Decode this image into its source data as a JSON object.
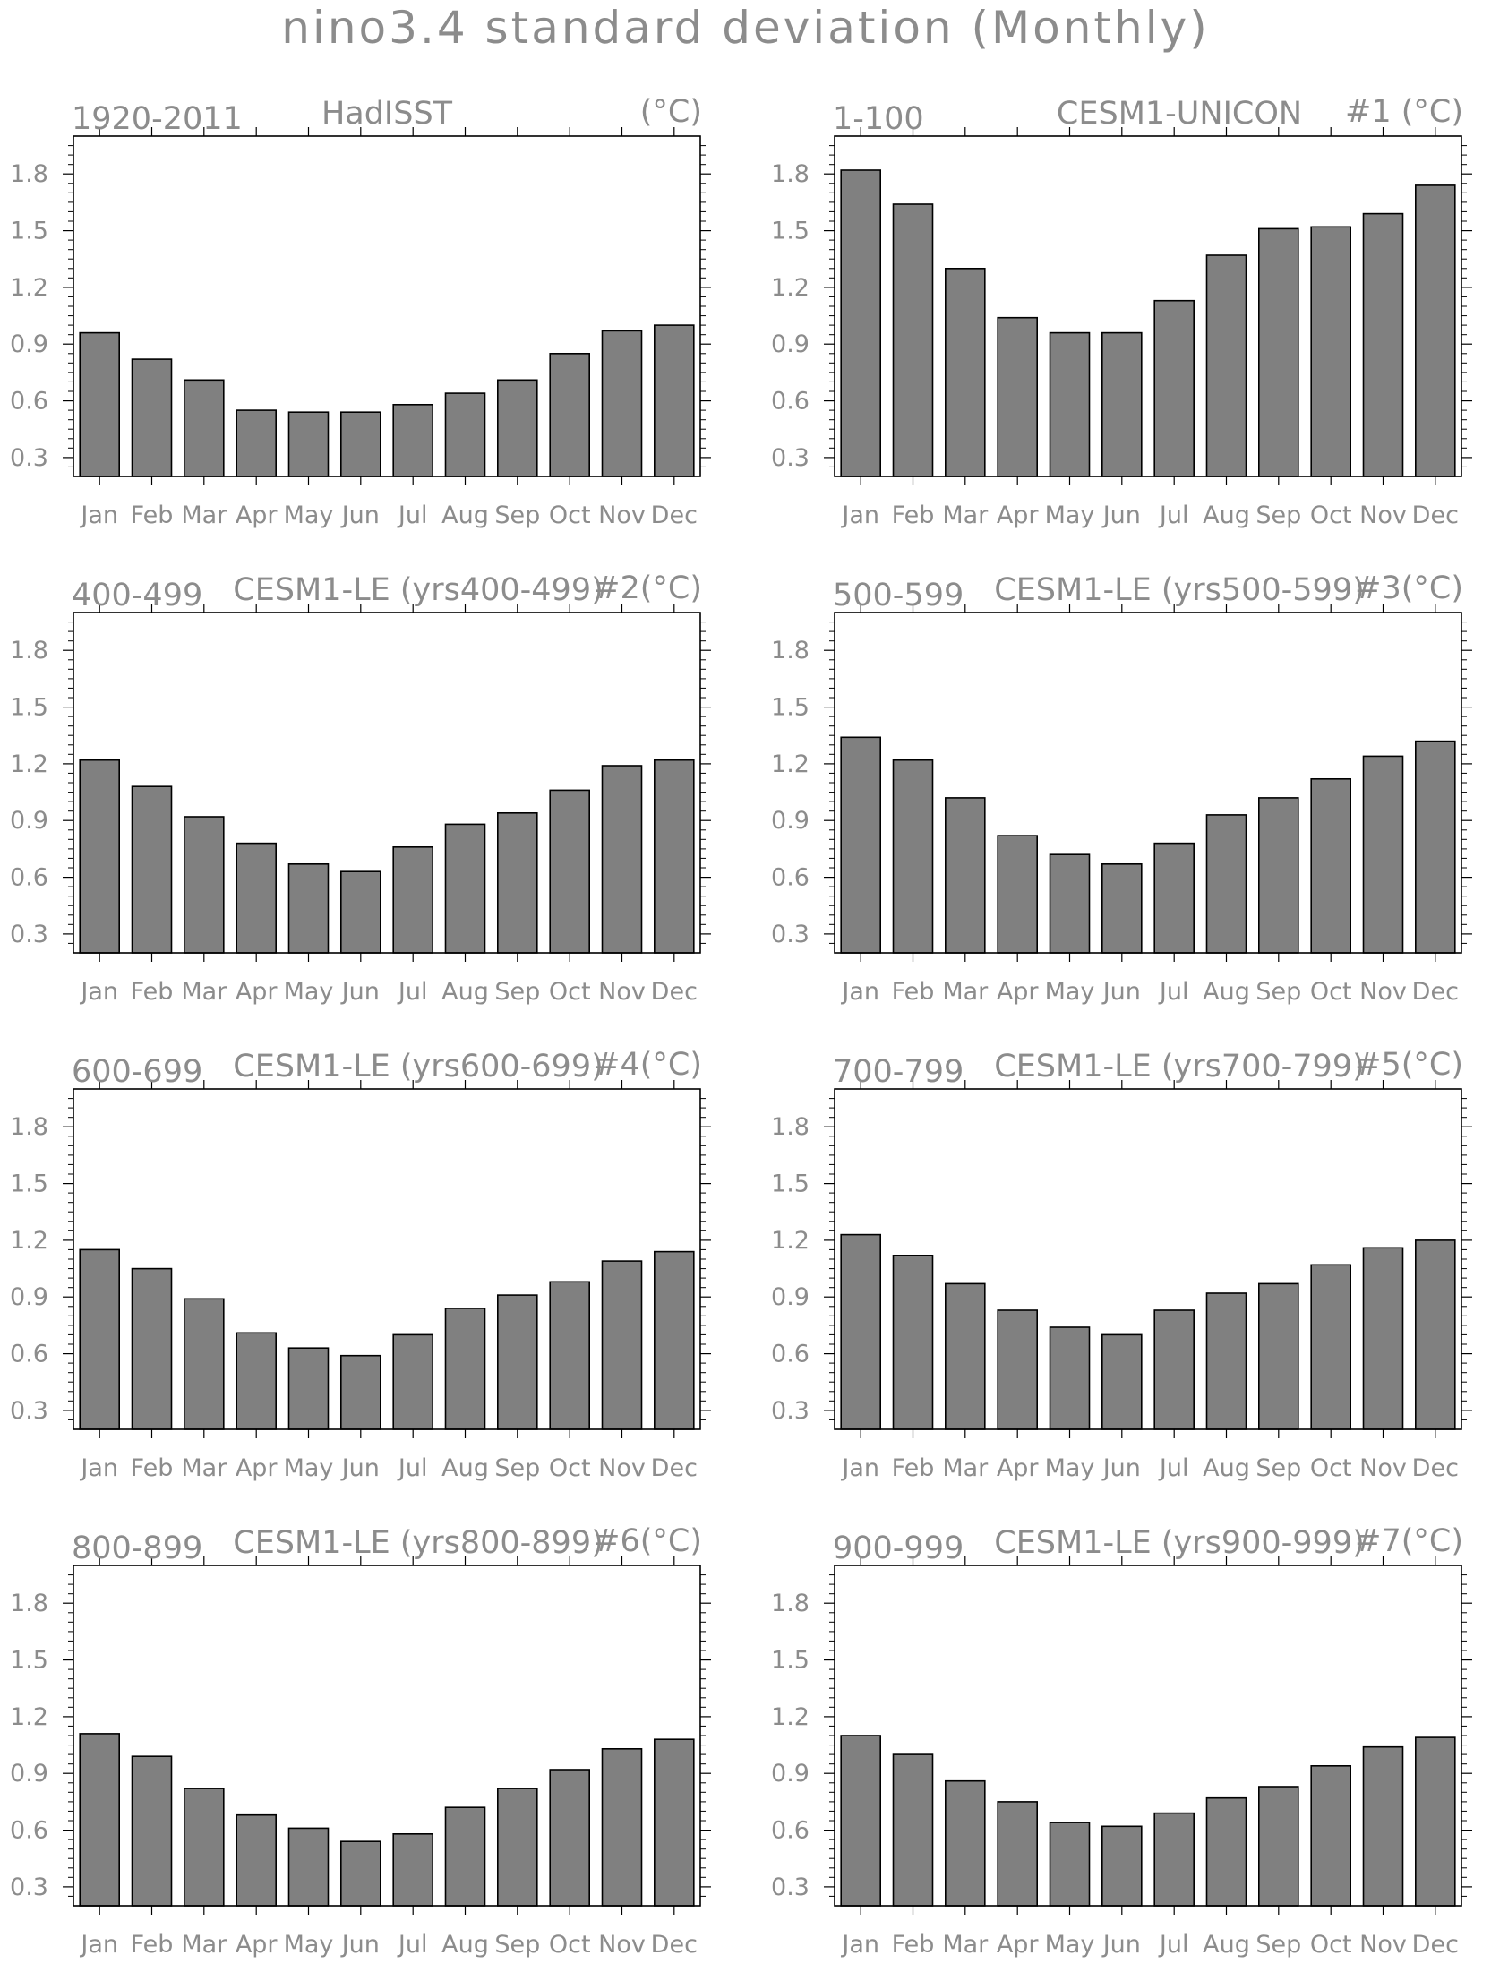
{
  "figure": {
    "title": "nino3.4  standard  deviation  (Monthly)"
  },
  "chart_data": [
    {
      "type": "bar",
      "left_label": "1920-2011",
      "center_label": "HadISST",
      "right_label": "(°C)",
      "categories": [
        "Jan",
        "Feb",
        "Mar",
        "Apr",
        "May",
        "Jun",
        "Jul",
        "Aug",
        "Sep",
        "Oct",
        "Nov",
        "Dec"
      ],
      "values": [
        0.96,
        0.82,
        0.71,
        0.55,
        0.54,
        0.54,
        0.58,
        0.64,
        0.71,
        0.85,
        0.97,
        1.0
      ],
      "yticks": [
        0.3,
        0.6,
        0.9,
        1.2,
        1.5,
        1.8
      ],
      "ylim": [
        0.2,
        2.0
      ],
      "bar_color": "#808080"
    },
    {
      "type": "bar",
      "left_label": "1-100",
      "center_label": "CESM1-UNICON",
      "right_label": "#1  (°C)",
      "categories": [
        "Jan",
        "Feb",
        "Mar",
        "Apr",
        "May",
        "Jun",
        "Jul",
        "Aug",
        "Sep",
        "Oct",
        "Nov",
        "Dec"
      ],
      "values": [
        1.82,
        1.64,
        1.3,
        1.04,
        0.96,
        0.96,
        1.13,
        1.37,
        1.51,
        1.52,
        1.59,
        1.74
      ],
      "yticks": [
        0.3,
        0.6,
        0.9,
        1.2,
        1.5,
        1.8
      ],
      "ylim": [
        0.2,
        2.0
      ],
      "bar_color": "#808080"
    },
    {
      "type": "bar",
      "left_label": "400-499",
      "center_label": "CESM1-LE (yrs400-499)",
      "right_label": "#2(°C)",
      "categories": [
        "Jan",
        "Feb",
        "Mar",
        "Apr",
        "May",
        "Jun",
        "Jul",
        "Aug",
        "Sep",
        "Oct",
        "Nov",
        "Dec"
      ],
      "values": [
        1.22,
        1.08,
        0.92,
        0.78,
        0.67,
        0.63,
        0.76,
        0.88,
        0.94,
        1.06,
        1.19,
        1.22
      ],
      "yticks": [
        0.3,
        0.6,
        0.9,
        1.2,
        1.5,
        1.8
      ],
      "ylim": [
        0.2,
        2.0
      ],
      "bar_color": "#808080"
    },
    {
      "type": "bar",
      "left_label": "500-599",
      "center_label": "CESM1-LE (yrs500-599)",
      "right_label": "#3(°C)",
      "categories": [
        "Jan",
        "Feb",
        "Mar",
        "Apr",
        "May",
        "Jun",
        "Jul",
        "Aug",
        "Sep",
        "Oct",
        "Nov",
        "Dec"
      ],
      "values": [
        1.34,
        1.22,
        1.02,
        0.82,
        0.72,
        0.67,
        0.78,
        0.93,
        1.02,
        1.12,
        1.24,
        1.32
      ],
      "yticks": [
        0.3,
        0.6,
        0.9,
        1.2,
        1.5,
        1.8
      ],
      "ylim": [
        0.2,
        2.0
      ],
      "bar_color": "#808080"
    },
    {
      "type": "bar",
      "left_label": "600-699",
      "center_label": "CESM1-LE (yrs600-699)",
      "right_label": "#4(°C)",
      "categories": [
        "Jan",
        "Feb",
        "Mar",
        "Apr",
        "May",
        "Jun",
        "Jul",
        "Aug",
        "Sep",
        "Oct",
        "Nov",
        "Dec"
      ],
      "values": [
        1.15,
        1.05,
        0.89,
        0.71,
        0.63,
        0.59,
        0.7,
        0.84,
        0.91,
        0.98,
        1.09,
        1.14
      ],
      "yticks": [
        0.3,
        0.6,
        0.9,
        1.2,
        1.5,
        1.8
      ],
      "ylim": [
        0.2,
        2.0
      ],
      "bar_color": "#808080"
    },
    {
      "type": "bar",
      "left_label": "700-799",
      "center_label": "CESM1-LE (yrs700-799)",
      "right_label": "#5(°C)",
      "categories": [
        "Jan",
        "Feb",
        "Mar",
        "Apr",
        "May",
        "Jun",
        "Jul",
        "Aug",
        "Sep",
        "Oct",
        "Nov",
        "Dec"
      ],
      "values": [
        1.23,
        1.12,
        0.97,
        0.83,
        0.74,
        0.7,
        0.83,
        0.92,
        0.97,
        1.07,
        1.16,
        1.2
      ],
      "yticks": [
        0.3,
        0.6,
        0.9,
        1.2,
        1.5,
        1.8
      ],
      "ylim": [
        0.2,
        2.0
      ],
      "bar_color": "#808080"
    },
    {
      "type": "bar",
      "left_label": "800-899",
      "center_label": "CESM1-LE (yrs800-899)",
      "right_label": "#6(°C)",
      "categories": [
        "Jan",
        "Feb",
        "Mar",
        "Apr",
        "May",
        "Jun",
        "Jul",
        "Aug",
        "Sep",
        "Oct",
        "Nov",
        "Dec"
      ],
      "values": [
        1.11,
        0.99,
        0.82,
        0.68,
        0.61,
        0.54,
        0.58,
        0.72,
        0.82,
        0.92,
        1.03,
        1.08
      ],
      "yticks": [
        0.3,
        0.6,
        0.9,
        1.2,
        1.5,
        1.8
      ],
      "ylim": [
        0.2,
        2.0
      ],
      "bar_color": "#808080"
    },
    {
      "type": "bar",
      "left_label": "900-999",
      "center_label": "CESM1-LE (yrs900-999)",
      "right_label": "#7(°C)",
      "categories": [
        "Jan",
        "Feb",
        "Mar",
        "Apr",
        "May",
        "Jun",
        "Jul",
        "Aug",
        "Sep",
        "Oct",
        "Nov",
        "Dec"
      ],
      "values": [
        1.1,
        1.0,
        0.86,
        0.75,
        0.64,
        0.62,
        0.69,
        0.77,
        0.83,
        0.94,
        1.04,
        1.09
      ],
      "yticks": [
        0.3,
        0.6,
        0.9,
        1.2,
        1.5,
        1.8
      ],
      "ylim": [
        0.2,
        2.0
      ],
      "bar_color": "#808080"
    }
  ]
}
